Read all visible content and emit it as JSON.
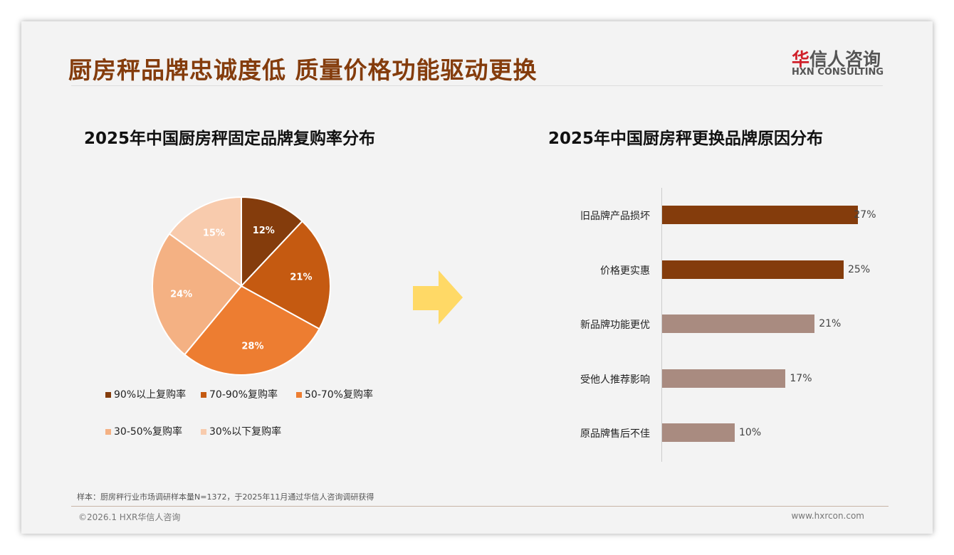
{
  "header": {
    "title": "厨房秤品牌忠诚度低 质量价格功能驱动更换",
    "logo_cn_red": "华",
    "logo_cn": "信人咨询",
    "logo_en": "HXN CONSULTING"
  },
  "chart_data": [
    {
      "type": "pie",
      "title": "2025年中国厨房秤固定品牌复购率分布",
      "labels": [
        "90%以上复购率",
        "70-90%复购率",
        "50-70%复购率",
        "30-50%复购率",
        "30%以下复购率"
      ],
      "values": [
        12,
        21,
        28,
        24,
        15
      ],
      "value_labels": [
        "12%",
        "21%",
        "28%",
        "24%",
        "15%"
      ],
      "colors": [
        "#843c0c",
        "#c55a11",
        "#ed7d31",
        "#f4b183",
        "#f8cbad"
      ],
      "legend": "bottom"
    },
    {
      "type": "bar",
      "orientation": "horizontal",
      "title": "2025年中国厨房秤更换品牌原因分布",
      "categories": [
        "旧品牌产品损坏",
        "价格更实惠",
        "新品牌功能更优",
        "受他人推荐影响",
        "原品牌售后不佳"
      ],
      "values": [
        27,
        25,
        21,
        17,
        10
      ],
      "value_labels": [
        "27%",
        "25%",
        "21%",
        "17%",
        "10%"
      ],
      "colors": [
        "#843c0c",
        "#843c0c",
        "#a98b80",
        "#a98b80",
        "#a98b80"
      ],
      "xlim": [
        0,
        30
      ]
    }
  ],
  "footer": {
    "note": "样本：厨房秤行业市场调研样本量N=1372，于2025年11月通过华信人咨询调研获得",
    "copyright": "©2026.1 HXR华信人咨询",
    "url": "www.hxrcon.com"
  }
}
